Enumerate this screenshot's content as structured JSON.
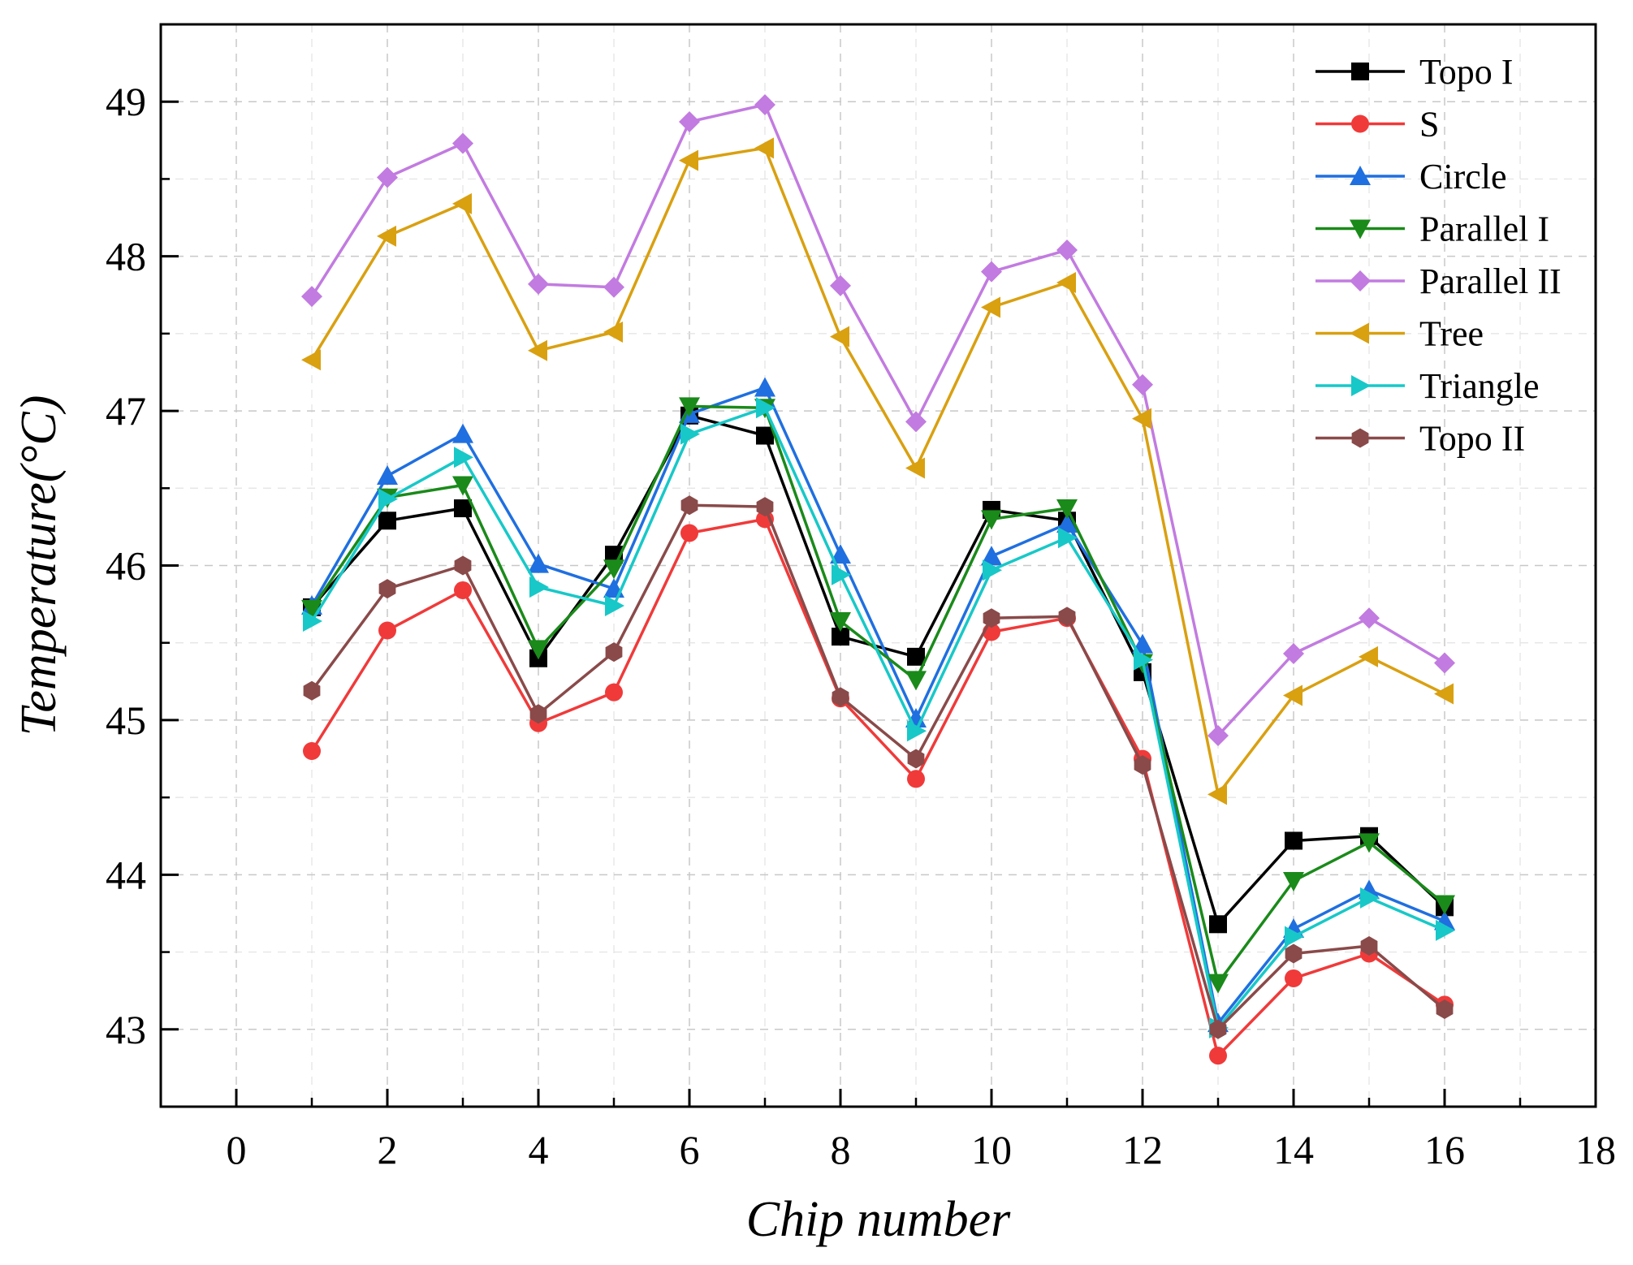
{
  "chart_data": {
    "type": "line",
    "title": "",
    "xlabel": "Chip number",
    "ylabel": "Temperature(°C)",
    "xlim": [
      -1,
      18
    ],
    "ylim": [
      42.5,
      49.5
    ],
    "xticks": [
      0,
      2,
      4,
      6,
      8,
      10,
      12,
      14,
      16,
      18
    ],
    "yticks": [
      43,
      44,
      45,
      46,
      47,
      48,
      49
    ],
    "grid": true,
    "legend_position": "top-right",
    "x": [
      1,
      2,
      3,
      4,
      5,
      6,
      7,
      8,
      9,
      10,
      11,
      12,
      13,
      14,
      15,
      16
    ],
    "series": [
      {
        "name": "Topo I",
        "color": "#000000",
        "marker": "square",
        "values": [
          45.73,
          46.29,
          46.37,
          45.4,
          46.07,
          46.97,
          46.84,
          45.54,
          45.41,
          46.36,
          46.29,
          45.31,
          43.68,
          44.22,
          44.25,
          43.79
        ]
      },
      {
        "name": "S",
        "color": "#f03a3a",
        "marker": "circle",
        "values": [
          44.8,
          45.58,
          45.84,
          44.98,
          45.18,
          46.21,
          46.3,
          45.14,
          44.62,
          45.57,
          45.66,
          44.75,
          42.83,
          43.33,
          43.49,
          43.16
        ]
      },
      {
        "name": "Circle",
        "color": "#1f6fe0",
        "marker": "triangle-up",
        "values": [
          45.74,
          46.58,
          46.85,
          46.01,
          45.85,
          46.98,
          47.15,
          46.07,
          45.01,
          46.06,
          46.27,
          45.49,
          43.04,
          43.65,
          43.9,
          43.7
        ]
      },
      {
        "name": "Parallel I",
        "color": "#1a8a1a",
        "marker": "triangle-down",
        "values": [
          45.72,
          46.44,
          46.52,
          45.46,
          45.98,
          47.03,
          47.02,
          45.64,
          45.26,
          46.3,
          46.37,
          45.37,
          43.3,
          43.96,
          44.21,
          43.81
        ]
      },
      {
        "name": "Parallel II",
        "color": "#c27be0",
        "marker": "diamond",
        "values": [
          47.74,
          48.51,
          48.73,
          47.82,
          47.8,
          48.87,
          48.98,
          47.81,
          46.93,
          47.9,
          48.04,
          47.17,
          44.9,
          45.43,
          45.66,
          45.37
        ]
      },
      {
        "name": "Tree",
        "color": "#d9a010",
        "marker": "triangle-left",
        "values": [
          47.33,
          48.13,
          48.34,
          47.39,
          47.51,
          48.62,
          48.7,
          47.48,
          46.63,
          47.67,
          47.83,
          46.95,
          44.52,
          45.16,
          45.41,
          45.17
        ]
      },
      {
        "name": "Triangle",
        "color": "#18c8c8",
        "marker": "triangle-right",
        "values": [
          45.64,
          46.43,
          46.7,
          45.86,
          45.74,
          46.85,
          47.02,
          45.94,
          44.93,
          45.97,
          46.18,
          45.39,
          43.01,
          43.6,
          43.85,
          43.64
        ]
      },
      {
        "name": "Topo II",
        "color": "#8a4a4a",
        "marker": "hexagon",
        "values": [
          45.19,
          45.85,
          46.0,
          45.04,
          45.44,
          46.39,
          46.38,
          45.15,
          44.75,
          45.66,
          45.67,
          44.71,
          43.0,
          43.49,
          43.54,
          43.13
        ]
      }
    ]
  }
}
